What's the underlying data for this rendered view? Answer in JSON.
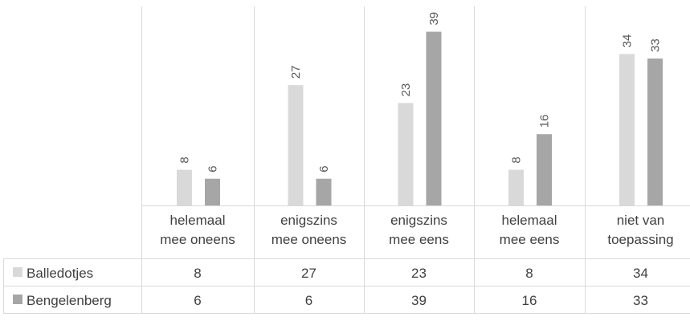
{
  "chart_data": {
    "type": "bar",
    "categories": [
      [
        "helemaal",
        "mee oneens"
      ],
      [
        "enigszins",
        "mee oneens"
      ],
      [
        "enigszins",
        "mee eens"
      ],
      [
        "helemaal",
        "mee eens"
      ],
      [
        "niet van",
        "toepassing"
      ]
    ],
    "series": [
      {
        "name": "Balledotjes",
        "color": "#d9d9d9",
        "values": [
          8,
          27,
          23,
          8,
          34
        ]
      },
      {
        "name": "Bengelenberg",
        "color": "#a6a6a6",
        "values": [
          6,
          6,
          39,
          16,
          33
        ]
      }
    ],
    "ylim": [
      0,
      40
    ],
    "legend": "data-table",
    "data_labels": "rotated-vertical",
    "grid": false
  }
}
